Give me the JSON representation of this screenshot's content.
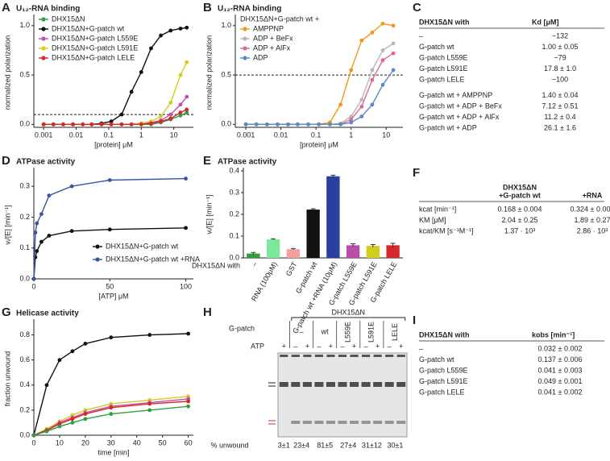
{
  "chart_data": [
    {
      "type": "line",
      "letter": "A",
      "title": "U₁₂-RNA binding",
      "x_label": "[protein] μM",
      "y_label": "normalized polarization",
      "xscale": "log",
      "xlim": [
        0.0005,
        40
      ],
      "xticks": [
        0.001,
        0.01,
        0.1,
        1,
        10
      ],
      "ylim": [
        -0.03,
        1.08
      ],
      "yticks": [
        {
          "value": 0,
          "label": "0.0"
        },
        {
          "value": 0.5,
          "label": "0.5"
        },
        {
          "value": 1,
          "label": "1.0"
        }
      ],
      "ref_line": 0.1,
      "legend": "top-left",
      "x": [
        0.001,
        0.002,
        0.004,
        0.008,
        0.016,
        0.03,
        0.06,
        0.12,
        0.25,
        0.5,
        1,
        2,
        4,
        8,
        16,
        25
      ],
      "series": [
        {
          "name": "DHX15ΔN",
          "color": "#2e9e3e",
          "values": [
            0,
            0,
            0,
            0,
            0,
            0,
            0,
            0,
            0,
            0,
            0,
            0,
            0.02,
            0.05,
            0.09,
            0.12
          ]
        },
        {
          "name": "DHX15ΔN+G-patch wt",
          "color": "#111111",
          "values": [
            0,
            0,
            0,
            0,
            0,
            0,
            0.01,
            0.03,
            0.1,
            0.33,
            0.53,
            0.77,
            0.9,
            0.95,
            0.97,
            0.98
          ]
        },
        {
          "name": "DHX15ΔN+G-patch L559E",
          "color": "#c04fb0",
          "values": [
            0,
            0,
            0,
            0,
            0,
            0,
            0,
            0,
            0,
            0,
            0.01,
            0.02,
            0.04,
            0.1,
            0.2,
            0.28
          ]
        },
        {
          "name": "DHX15ΔN+G-patch L591E",
          "color": "#d4cc1a",
          "values": [
            0,
            0,
            0,
            0,
            0,
            0,
            0,
            0,
            0,
            0,
            0.01,
            0.03,
            0.08,
            0.22,
            0.5,
            0.63
          ]
        },
        {
          "name": "DHX15ΔN+G-patch LELE",
          "color": "#d6282a",
          "values": [
            0,
            0,
            0,
            0,
            0,
            0,
            0,
            0,
            0,
            0,
            0,
            0.01,
            0.03,
            0.06,
            0.12,
            0.15
          ]
        }
      ]
    },
    {
      "type": "line",
      "letter": "B",
      "title": "U₁₂-RNA binding",
      "x_label": "[protein] μM",
      "y_label": "normalized polarization",
      "xscale": "log",
      "xlim": [
        0.0005,
        30
      ],
      "xticks": [
        0.001,
        0.01,
        0.1,
        1,
        10
      ],
      "ylim": [
        -0.03,
        1.08
      ],
      "yticks": [
        {
          "value": 0,
          "label": "0.0"
        },
        {
          "value": 0.5,
          "label": "0.5"
        },
        {
          "value": 1,
          "label": "1.0"
        }
      ],
      "ref_line": 0.5,
      "legend": "top-left",
      "legend_title": "DHX15ΔN+G-patch wt +",
      "x": [
        0.001,
        0.002,
        0.004,
        0.008,
        0.016,
        0.03,
        0.06,
        0.12,
        0.25,
        0.5,
        1,
        2,
        4,
        8,
        16
      ],
      "series": [
        {
          "name": "AMPPNP",
          "color": "#f0981a",
          "values": [
            0,
            0,
            0,
            0,
            0,
            0,
            0,
            0,
            0.02,
            0.2,
            0.55,
            0.85,
            0.93,
            1.02,
            1.0
          ]
        },
        {
          "name": "ADP + BeFx",
          "color": "#b8b8b8",
          "values": [
            0,
            0,
            0,
            0,
            0,
            0,
            0,
            0,
            0,
            0.01,
            0.08,
            0.25,
            0.55,
            0.75,
            0.82
          ]
        },
        {
          "name": "ADP + AlFx",
          "color": "#e0659a",
          "values": [
            0,
            0,
            0,
            0,
            0,
            0,
            0,
            0,
            0,
            0,
            0.05,
            0.18,
            0.45,
            0.65,
            0.72
          ]
        },
        {
          "name": "ADP",
          "color": "#5b8ac4",
          "values": [
            0,
            0,
            0,
            0,
            0,
            0,
            0,
            0,
            0,
            0,
            0.02,
            0.08,
            0.2,
            0.4,
            0.55
          ]
        }
      ]
    },
    {
      "type": "line",
      "letter": "D",
      "title": "ATPase activity",
      "x_label": "[ATP] μM",
      "y_label": "vᵢ/[E] [min⁻¹]",
      "xlim": [
        0,
        105
      ],
      "xticks": [
        0,
        50,
        100
      ],
      "ylim": [
        0,
        0.35
      ],
      "yticks": [
        {
          "value": 0,
          "label": "0.0"
        },
        {
          "value": 0.1,
          "label": "0.1"
        },
        {
          "value": 0.2,
          "label": "0.2"
        },
        {
          "value": 0.3,
          "label": "0.3"
        }
      ],
      "legend": "bottom-right",
      "x": [
        0,
        1,
        2,
        5,
        10,
        25,
        50,
        100
      ],
      "series": [
        {
          "name": "DHX15ΔN+G-patch wt",
          "color": "#111111",
          "values": [
            0,
            0.07,
            0.09,
            0.12,
            0.14,
            0.155,
            0.16,
            0.165
          ]
        },
        {
          "name": "DHX15ΔN+G-patch wt +RNA",
          "color": "#3a55a0",
          "values": [
            0,
            0.15,
            0.18,
            0.21,
            0.27,
            0.3,
            0.32,
            0.325
          ]
        }
      ]
    },
    {
      "type": "bar",
      "letter": "E",
      "title": "ATPase activity",
      "y_label": "vᵢ/[E] [min⁻¹]",
      "category_title": "DHX15ΔN with",
      "ylim": [
        0,
        0.4
      ],
      "yticks": [
        {
          "value": 0,
          "label": "0.0"
        },
        {
          "value": 0.1,
          "label": "0.1"
        },
        {
          "value": 0.2,
          "label": "0.2"
        },
        {
          "value": 0.3,
          "label": "0.3"
        },
        {
          "value": 0.4,
          "label": "0.4"
        }
      ],
      "categories": [
        "–",
        "RNA (100μM)",
        "GST",
        "G-patch wt",
        "G-patch wt +RNA (10μM)",
        "G-patch L559E",
        "G-patch L591E",
        "G-patch LELE"
      ],
      "values": [
        0.02,
        0.085,
        0.04,
        0.222,
        0.375,
        0.058,
        0.055,
        0.058
      ],
      "errors": [
        0.005,
        0.003,
        0.003,
        0.004,
        0.005,
        0.007,
        0.006,
        0.009
      ],
      "colors": [
        "#2e9e3e",
        "#7de89a",
        "#f0a0a0",
        "#111111",
        "#2a3f9e",
        "#b84ea8",
        "#d4cc1a",
        "#d6282a"
      ]
    },
    {
      "type": "line",
      "letter": "G",
      "title": "Helicase activity",
      "x_label": "time [min]",
      "y_label": "fraction unwound",
      "xlim": [
        0,
        62
      ],
      "xticks": [
        0,
        10,
        20,
        30,
        40,
        50,
        60
      ],
      "ylim": [
        0,
        0.9
      ],
      "yticks": [
        {
          "value": 0,
          "label": "0.0"
        },
        {
          "value": 0.2,
          "label": "0.2"
        },
        {
          "value": 0.4,
          "label": "0.4"
        },
        {
          "value": 0.6,
          "label": "0.6"
        },
        {
          "value": 0.8,
          "label": "0.8"
        }
      ],
      "x": [
        0,
        5,
        10,
        15,
        20,
        30,
        45,
        60
      ],
      "series": [
        {
          "color": "#111111",
          "values": [
            0,
            0.4,
            0.6,
            0.67,
            0.73,
            0.78,
            0.8,
            0.81
          ]
        },
        {
          "color": "#d4cc1a",
          "values": [
            0,
            0.05,
            0.11,
            0.16,
            0.2,
            0.25,
            0.28,
            0.31
          ]
        },
        {
          "color": "#c04fb0",
          "values": [
            0,
            0.04,
            0.1,
            0.14,
            0.18,
            0.23,
            0.26,
            0.29
          ]
        },
        {
          "color": "#d6282a",
          "values": [
            0,
            0.04,
            0.09,
            0.13,
            0.17,
            0.22,
            0.25,
            0.27
          ]
        },
        {
          "color": "#2e9e3e",
          "values": [
            0,
            0.03,
            0.07,
            0.1,
            0.13,
            0.17,
            0.2,
            0.23
          ]
        }
      ]
    }
  ],
  "tables": [
    {
      "letter": "C",
      "header": [
        [
          "DHX15ΔN with"
        ],
        [
          "Kd [μM]"
        ]
      ],
      "rows": [
        [
          "–",
          "~132"
        ],
        [
          "G-patch wt",
          "1.00 ± 0.05"
        ],
        [
          "G-patch L559E",
          "~79"
        ],
        [
          "G-patch L591E",
          "17.8 ± 1.0"
        ],
        [
          "G-patch LELE",
          "~100"
        ],
        [
          "G-patch wt + AMPPNP",
          "1.40 ± 0.04"
        ],
        [
          "G-patch wt + ADP + BeFx",
          "7.12 ± 0.51"
        ],
        [
          "G-patch wt + ADP + AlFx",
          "11.2 ± 0.4"
        ],
        [
          "G-patch wt + ADP",
          "26.1 ± 1.6"
        ]
      ]
    },
    {
      "letter": "F",
      "header": [
        [
          "DHX15ΔN",
          "+G-patch wt"
        ],
        [
          "+RNA"
        ]
      ],
      "rows": [
        [
          "kcat [min⁻¹]",
          "0.168 ± 0.004",
          "0.324 ± 0.009"
        ],
        [
          "KM [μM]",
          "2.04 ± 0.25",
          "1.89 ± 0.27"
        ],
        [
          "kcat/KM [s⁻¹M⁻¹]",
          "1.37 · 10³",
          "2.86 · 10³"
        ]
      ]
    },
    {
      "letter": "I",
      "header": [
        [
          "DHX15ΔN with"
        ],
        [
          "kobs [min⁻¹]"
        ]
      ],
      "rows": [
        [
          "–",
          "0.032 ± 0.002"
        ],
        [
          "G-patch wt",
          "0.137 ± 0.006"
        ],
        [
          "G-patch L559E",
          "0.041 ± 0.003"
        ],
        [
          "G-patch L591E",
          "0.049 ± 0.001"
        ],
        [
          "G-patch LELE",
          "0.041 ± 0.002"
        ]
      ]
    }
  ],
  "gel": {
    "letter": "H",
    "construct": "DHX15ΔN",
    "gpatch_label": "G-patch",
    "atp_label": "ATP",
    "gpatch_lanes": [
      "–",
      "wt",
      "L559E",
      "L591E",
      "LELE"
    ],
    "atp": [
      "+",
      "–",
      "+",
      "–",
      "+",
      "–",
      "+",
      "–",
      "+",
      "–",
      "+"
    ],
    "unwound_label": "% unwound",
    "unwound": [
      "3±1",
      "23±4",
      "81±5",
      "27±4",
      "31±12",
      "30±1"
    ]
  }
}
